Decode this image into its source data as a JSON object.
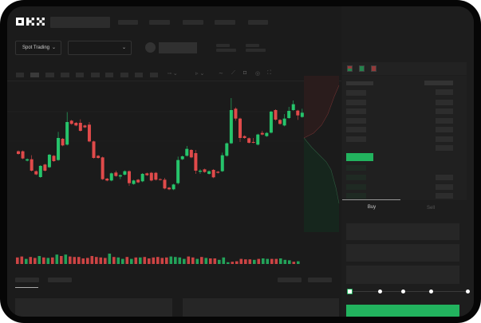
{
  "brand": {
    "logo_text": "OKX"
  },
  "toolbar": {
    "market_dropdown": "Spot Trading",
    "pair_dropdown": "",
    "chevron": "⌄"
  },
  "trade": {
    "tabs": [
      {
        "label": "Buy",
        "active": true
      },
      {
        "label": "Sell",
        "active": false
      }
    ],
    "slider_percent": 0,
    "accent": "#22b35e"
  },
  "colors": {
    "up": "#26c46b",
    "down": "#e04a4a",
    "background": "#1b1b1b"
  },
  "chart_data": {
    "type": "candlestick",
    "candles_ohlc": [
      [
        185,
        188,
        172,
        175
      ],
      [
        185,
        188,
        155,
        158
      ],
      [
        150,
        158,
        147,
        155
      ],
      [
        155,
        170,
        109,
        112
      ],
      [
        110,
        113,
        95,
        98
      ],
      [
        88,
        133,
        85,
        130
      ],
      [
        135,
        138,
        109,
        112
      ],
      [
        125,
        175,
        122,
        172
      ],
      [
        168,
        171,
        145,
        148
      ],
      [
        152,
        258,
        149,
        235
      ],
      [
        232,
        235,
        204,
        207
      ],
      [
        210,
        332,
        207,
        295
      ],
      [
        300,
        303,
        285,
        288
      ],
      [
        292,
        295,
        279,
        282
      ],
      [
        292,
        305,
        259,
        262
      ],
      [
        282,
        285,
        272,
        275
      ],
      [
        285,
        295,
        219,
        222
      ],
      [
        222,
        225,
        157,
        160
      ],
      [
        168,
        171,
        157,
        160
      ],
      [
        162,
        165,
        77,
        80
      ],
      [
        82,
        85,
        72,
        75
      ],
      [
        75,
        105,
        72,
        102
      ],
      [
        105,
        112,
        89,
        92
      ],
      [
        90,
        98,
        80,
        95
      ],
      [
        97,
        113,
        94,
        110
      ],
      [
        110,
        113,
        55,
        65
      ],
      [
        62,
        78,
        59,
        75
      ],
      [
        78,
        81,
        65,
        68
      ],
      [
        72,
        103,
        69,
        100
      ],
      [
        102,
        105,
        92,
        95
      ],
      [
        104,
        107,
        72,
        75
      ],
      [
        104,
        107,
        75,
        78
      ],
      [
        80,
        83,
        75,
        78
      ],
      [
        78,
        85,
        42,
        45
      ],
      [
        48,
        51,
        39,
        42
      ],
      [
        42,
        63,
        39,
        60
      ],
      [
        65,
        165,
        60,
        152
      ],
      [
        155,
        169,
        152,
        166
      ],
      [
        168,
        205,
        165,
        194
      ],
      [
        190,
        193,
        159,
        162
      ],
      [
        178,
        190,
        100,
        112
      ],
      [
        108,
        118,
        100,
        112
      ],
      [
        117,
        120,
        104,
        107
      ],
      [
        100,
        113,
        97,
        110
      ],
      [
        115,
        118,
        84,
        87
      ],
      [
        108,
        111,
        101,
        104
      ],
      [
        110,
        180,
        107,
        170
      ],
      [
        168,
        218,
        165,
        215
      ],
      [
        215,
        385,
        212,
        340
      ],
      [
        345,
        350,
        300,
        308
      ],
      [
        308,
        311,
        220,
        235
      ],
      [
        242,
        245,
        232,
        235
      ],
      [
        234,
        237,
        214,
        217
      ],
      [
        220,
        235,
        215,
        218
      ],
      [
        210,
        251,
        207,
        248
      ],
      [
        254,
        262,
        245,
        248
      ],
      [
        242,
        257,
        239,
        254
      ],
      [
        255,
        337,
        252,
        334
      ],
      [
        340,
        343,
        300,
        304
      ],
      [
        303,
        306,
        285,
        288
      ],
      [
        282,
        325,
        279,
        308
      ],
      [
        310,
        352,
        307,
        337
      ],
      [
        340,
        376,
        337,
        362
      ],
      [
        338,
        341,
        303,
        320
      ],
      [
        314,
        345,
        311,
        330
      ]
    ],
    "volume": [
      12,
      14,
      9,
      13,
      11,
      15,
      12,
      11,
      12,
      18,
      15,
      18,
      14,
      13,
      13,
      10,
      11,
      15,
      13,
      12,
      11,
      20,
      13,
      12,
      9,
      13,
      9,
      12,
      12,
      13,
      10,
      12,
      13,
      11,
      12,
      14,
      13,
      12,
      9,
      14,
      12,
      9,
      13,
      11,
      10,
      10,
      7,
      12,
      2,
      3,
      4,
      9,
      8,
      8,
      7,
      9,
      10,
      9,
      9,
      9,
      10,
      7,
      6,
      3,
      4
    ]
  }
}
